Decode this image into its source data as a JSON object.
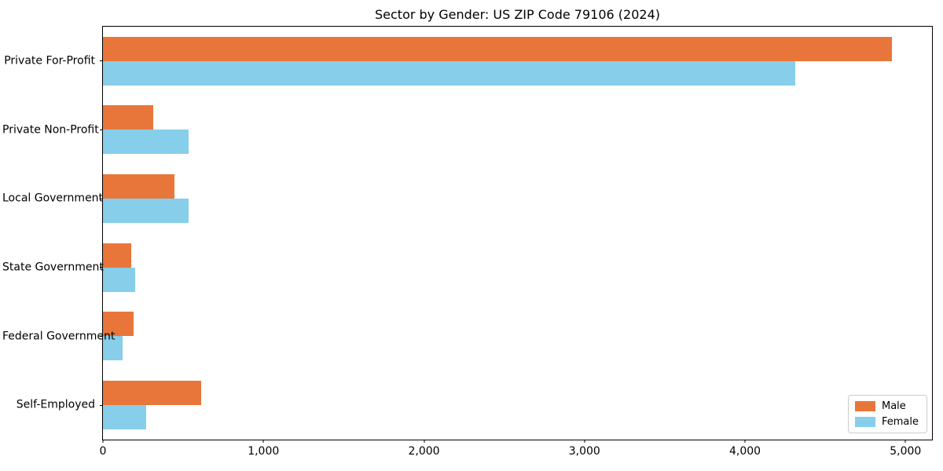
{
  "title": "Sector by Gender: US ZIP Code 79106 (2024)",
  "colors": {
    "male_bar": "#E8763B",
    "female_bar": "#87CEEB",
    "axis": "#000000",
    "legend_border": "#CCCCCC",
    "background": "#FFFFFF"
  },
  "chart_data": {
    "type": "bar",
    "orientation": "horizontal",
    "title": "Sector by Gender: US ZIP Code 79106 (2024)",
    "categories": [
      "Private For-Profit",
      "Private Non-Profit",
      "Local Government",
      "State Government",
      "Federal Government",
      "Self-Employed"
    ],
    "series": [
      {
        "name": "Male",
        "color": "#E8763B",
        "values": [
          4917,
          313,
          445,
          176,
          191,
          611
        ]
      },
      {
        "name": "Female",
        "color": "#87CEEB",
        "values": [
          4315,
          533,
          533,
          200,
          122,
          269
        ]
      }
    ],
    "xlabel": "",
    "ylabel": "",
    "xlim": [
      0,
      5165
    ],
    "xticks": [
      0,
      1000,
      2000,
      3000,
      4000,
      5000
    ],
    "xtick_labels": [
      "0",
      "1,000",
      "2,000",
      "3,000",
      "4,000",
      "5,000"
    ],
    "grid": false,
    "legend": {
      "position": "lower right",
      "entries": [
        "Male",
        "Female"
      ]
    }
  }
}
